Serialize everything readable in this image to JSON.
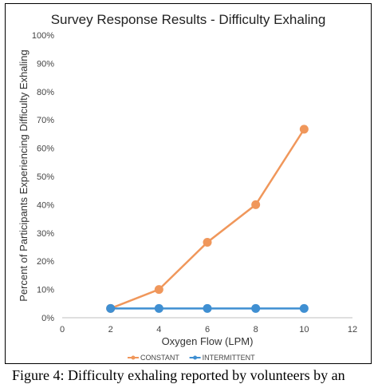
{
  "chart_data": {
    "type": "line",
    "title": "Survey Response Results - Difficulty Exhaling",
    "xlabel": "Oxygen Flow (LPM)",
    "ylabel": "Percent of Participants Experiencing Difficulty Exhaling",
    "xlim": [
      0,
      12
    ],
    "ylim": [
      0,
      100
    ],
    "x_ticks": [
      "0",
      "2",
      "4",
      "6",
      "8",
      "10",
      "12"
    ],
    "y_ticks": [
      "0%",
      "10%",
      "20%",
      "30%",
      "40%",
      "50%",
      "60%",
      "70%",
      "80%",
      "90%",
      "100%"
    ],
    "grid": false,
    "legend_position": "bottom",
    "series": [
      {
        "name": "CONSTANT",
        "color": "#F0975B",
        "x": [
          2,
          4,
          6,
          8,
          10
        ],
        "y": [
          3.3,
          10,
          26.7,
          40,
          66.7
        ]
      },
      {
        "name": "INTERMITTENT",
        "color": "#3F8FD2",
        "x": [
          2,
          4,
          6,
          8,
          10
        ],
        "y": [
          3.3,
          3.3,
          3.3,
          3.3,
          3.3
        ]
      }
    ]
  },
  "caption": "Figure 4: Difficulty exhaling reported by volunteers by an"
}
